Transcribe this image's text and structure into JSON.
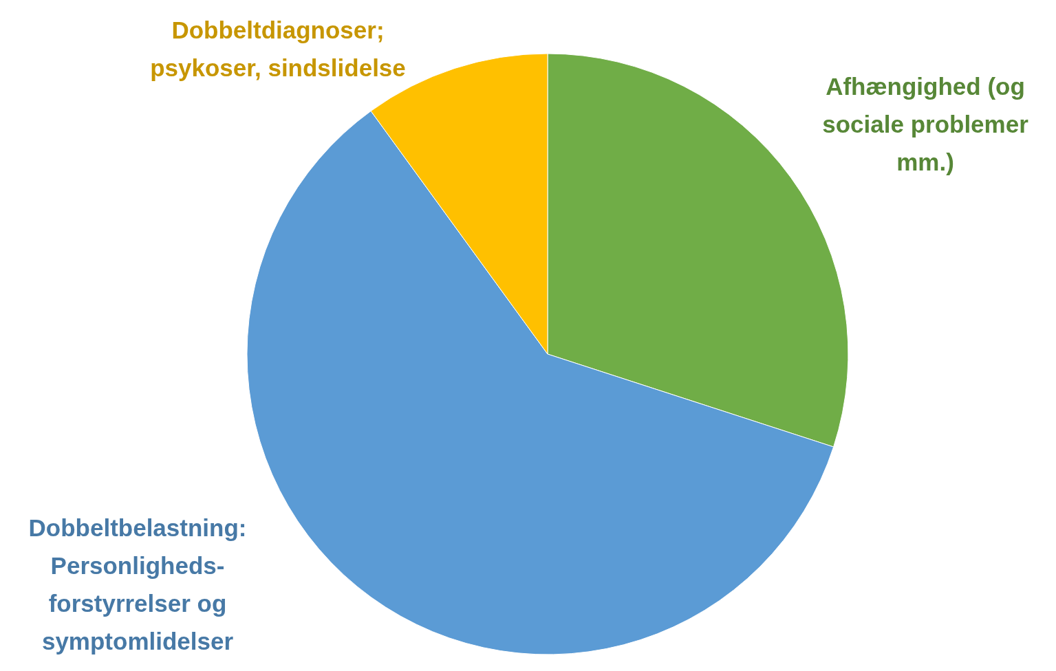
{
  "chart_data": {
    "type": "pie",
    "categories": [
      "Afhængighed (og sociale problemer mm.)",
      "Dobbeltbelastning: Personligheds-forstyrrelser og symptomlidelser",
      "Dobbeltdiagnoser; psykoser, sindslidelse"
    ],
    "values": [
      30,
      60,
      10
    ],
    "colors": [
      "#70ad47",
      "#5b9bd5",
      "#ffc000"
    ]
  }
}
